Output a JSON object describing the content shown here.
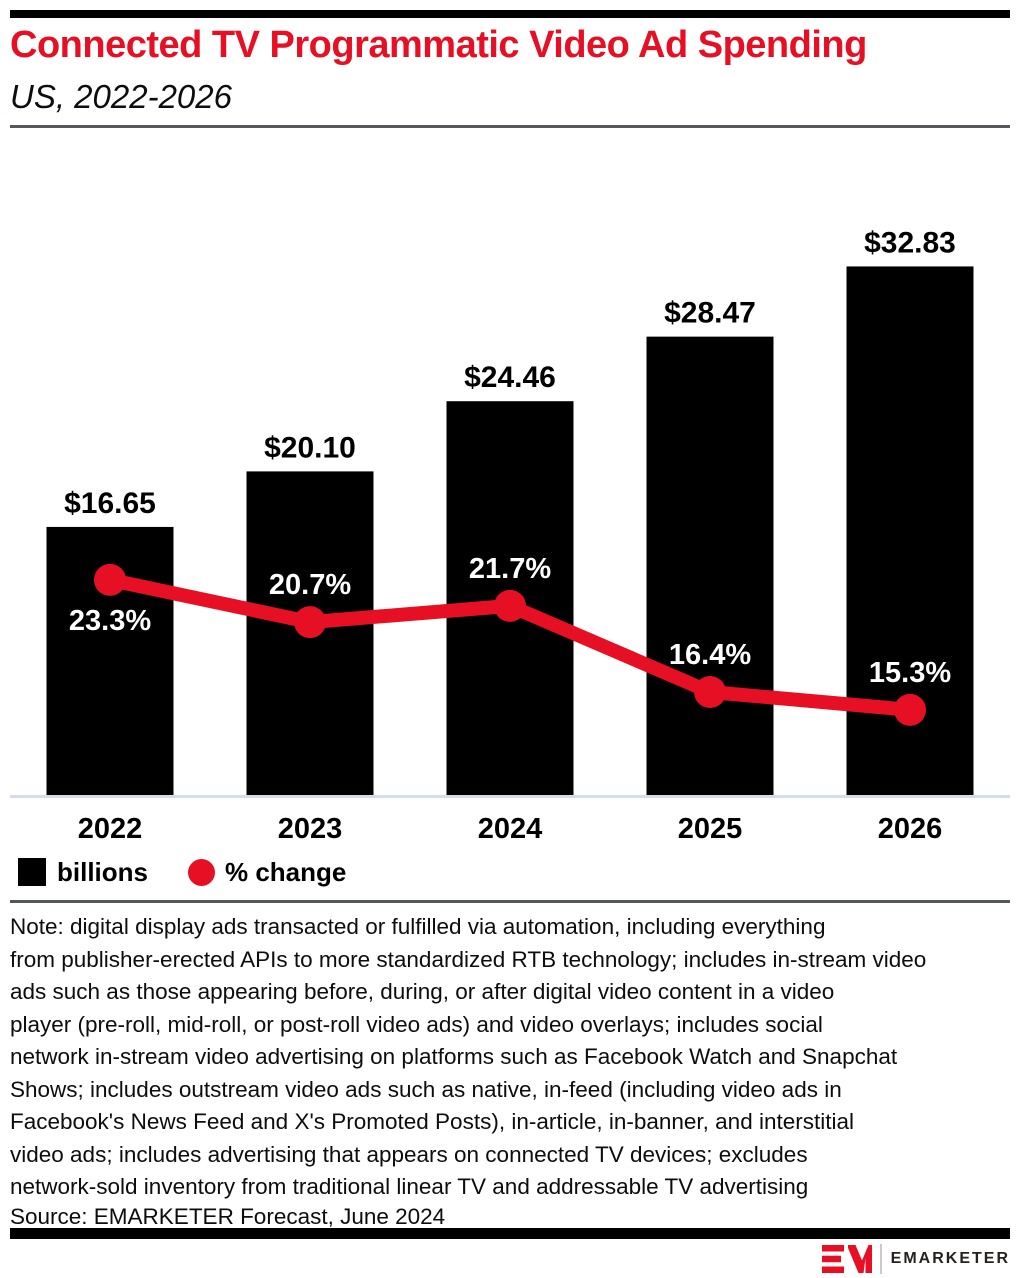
{
  "page": {
    "title": "Connected TV Programmatic Video Ad Spending",
    "subtitle": "US, 2022-2026"
  },
  "chart_data": {
    "type": "bar",
    "combo": "bar+line",
    "title": "Connected TV Programmatic Video Ad Spending",
    "subtitle": "US, 2022-2026",
    "categories": [
      "2022",
      "2023",
      "2024",
      "2025",
      "2026"
    ],
    "series": [
      {
        "name": "billions",
        "type": "bar",
        "values": [
          16.65,
          20.1,
          24.46,
          28.47,
          32.83
        ],
        "labels": [
          "$16.65",
          "$20.10",
          "$24.46",
          "$28.47",
          "$32.83"
        ],
        "color": "#000000"
      },
      {
        "name": "% change",
        "type": "line",
        "values": [
          23.3,
          20.7,
          21.7,
          16.4,
          15.3
        ],
        "labels": [
          "23.3%",
          "20.7%",
          "21.7%",
          "16.4%",
          "15.3%"
        ],
        "color": "#e60f23",
        "label_placement": [
          "below",
          "above",
          "above",
          "above",
          "above"
        ]
      }
    ],
    "xlabel": "",
    "ylabel": "",
    "value_axis_visible": false,
    "grid": false,
    "legend_position": "bottom-left"
  },
  "legend": {
    "items": [
      {
        "label": "billions",
        "marker": "square",
        "color": "#000000"
      },
      {
        "label": "% change",
        "marker": "circle",
        "color": "#e60f23"
      }
    ]
  },
  "note": "Note: digital display ads transacted or fulfilled via automation, including everything\nfrom publisher-erected APIs to more standardized RTB technology; includes in-stream video\nads such as those appearing before, during, or after digital video content in a video\nplayer (pre-roll, mid-roll, or post-roll video ads) and video overlays; includes social\nnetwork in-stream video advertising on platforms such as Facebook Watch and Snapchat\nShows; includes outstream video ads such as native, in-feed (including video ads in\nFacebook's News Feed and X's Promoted Posts), in-article, in-banner, and interstitial\nvideo ads; includes advertising that appears on connected TV devices; excludes\nnetwork-sold inventory from traditional linear TV and addressable TV advertising",
  "source": "Source: EMARKETER Forecast, June 2024",
  "footer": {
    "logo_mark": "EM",
    "brand": "EMARKETER"
  },
  "colors": {
    "accent_red": "#e60f23",
    "bar_black": "#000000",
    "axis_line": "#d4ddee",
    "rule_gray": "#54585c"
  }
}
